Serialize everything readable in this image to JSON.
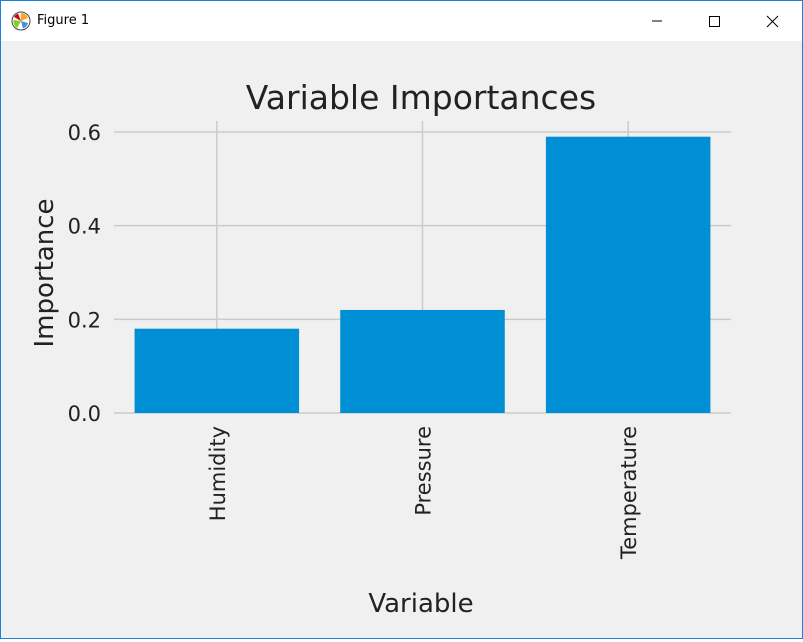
{
  "window": {
    "title": "Figure 1",
    "icon": "matplotlib-icon",
    "controls": [
      "minimize-icon",
      "maximize-icon",
      "close-icon"
    ]
  },
  "colors": {
    "bar": "#008fd5",
    "grid": "#cbcbcb",
    "background": "#f0f0f0",
    "text": "#222222"
  },
  "chart_data": {
    "type": "bar",
    "title": "Variable Importances",
    "xlabel": "Variable",
    "ylabel": "Importance",
    "categories": [
      "Humidity",
      "Pressure",
      "Temperature"
    ],
    "values": [
      0.18,
      0.22,
      0.59
    ],
    "ylim": [
      0,
      0.6
    ],
    "yticks": [
      0.0,
      0.2,
      0.4,
      0.6
    ],
    "ytick_labels": [
      "0.0",
      "0.2",
      "0.4",
      "0.6"
    ],
    "xtick_rotation": "vertical",
    "grid": true,
    "style": "fivethirtyeight"
  }
}
